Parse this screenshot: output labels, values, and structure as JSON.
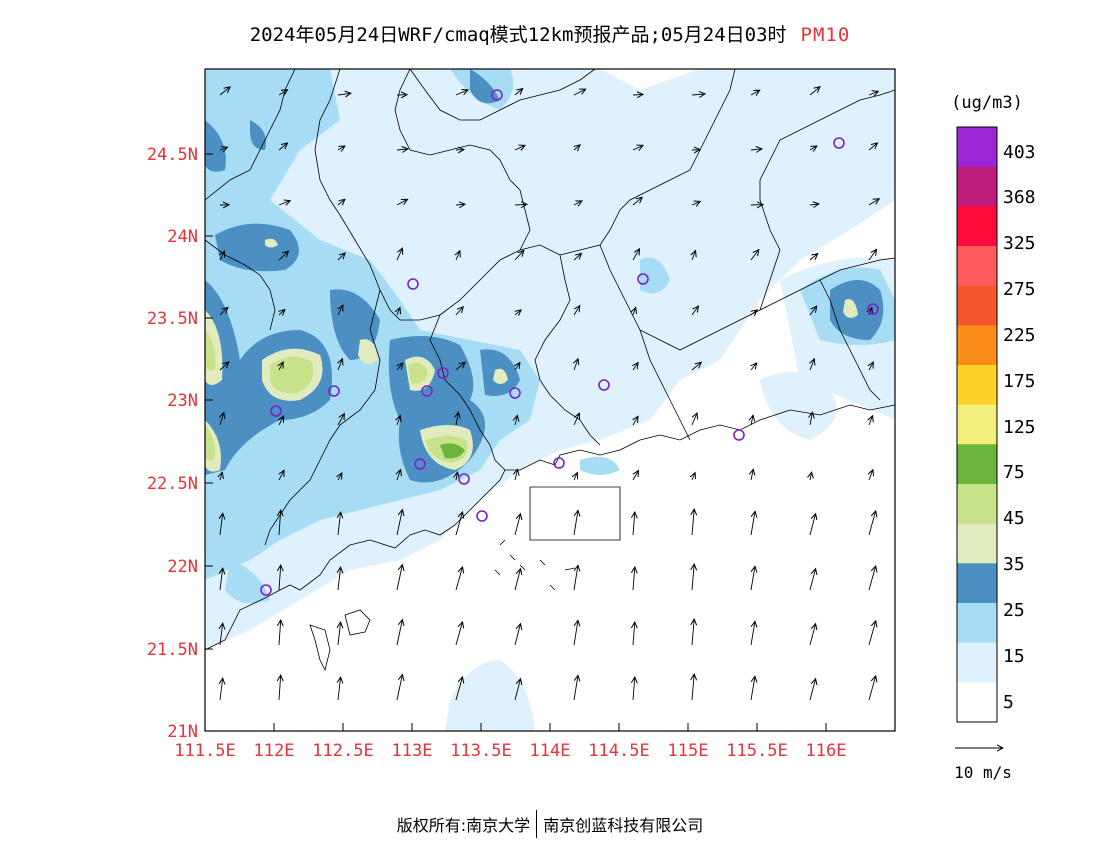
{
  "title": {
    "main": "2024年05月24日WRF/cmaq模式12km预报产品;05月24日03时",
    "pollutant": "PM10"
  },
  "map": {
    "lat_labels": [
      "24.5N",
      "24N",
      "23.5N",
      "23N",
      "22.5N",
      "22N",
      "21.5N",
      "21N"
    ],
    "lon_labels": [
      "111.5E",
      "112E",
      "112.5E",
      "113E",
      "113.5E",
      "114E",
      "114.5E",
      "115E",
      "115.5E",
      "116E"
    ],
    "label_color": "#e8313a"
  },
  "legend": {
    "unit": "(ug/m3)",
    "levels": [
      "403",
      "368",
      "325",
      "275",
      "225",
      "175",
      "125",
      "75",
      "45",
      "35",
      "25",
      "15",
      "5"
    ],
    "colors": [
      "#9a26d4",
      "#c01c7c",
      "#ff0a3a",
      "#ff5a5c",
      "#f4562c",
      "#fa8c17",
      "#fcd129",
      "#f2f07a",
      "#6bb43b",
      "#c8e28a",
      "#e0ecc0",
      "#4b8fc3",
      "#a7dcf5",
      "#dff1fc",
      "#ffffff"
    ]
  },
  "wind_reference": {
    "label": "10 m/s"
  },
  "footer": {
    "copyright": "版权所有:南京大学",
    "company": "南京创蓝科技有限公司"
  }
}
